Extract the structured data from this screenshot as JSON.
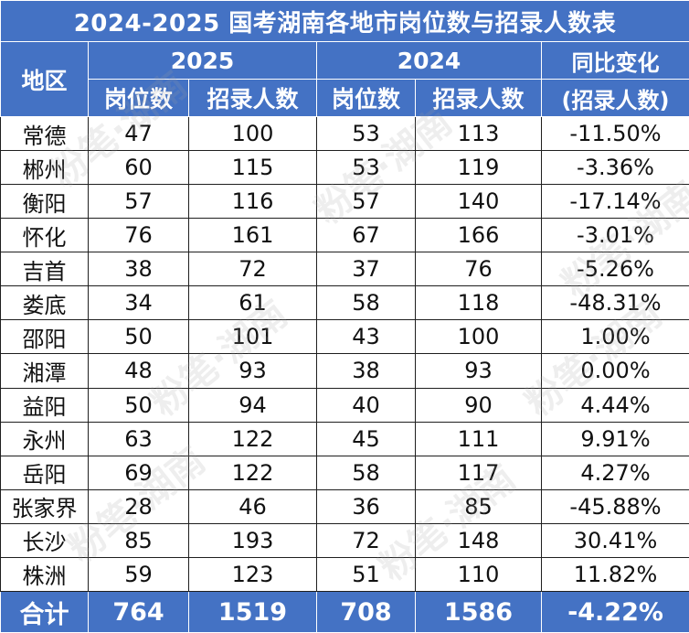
{
  "title": "2024-2025 国考湖南各地市岗位数与招录人数表",
  "header": {
    "region": "地区",
    "year_2025": "2025",
    "year_2024": "2024",
    "yoy_line1": "同比变化",
    "yoy_line2": "(招录人数)",
    "positions": "岗位数",
    "recruits": "招录人数"
  },
  "rows": [
    {
      "region": "常德",
      "p2025": "47",
      "r2025": "100",
      "p2024": "53",
      "r2024": "113",
      "yoy": "-11.50%"
    },
    {
      "region": "郴州",
      "p2025": "60",
      "r2025": "115",
      "p2024": "53",
      "r2024": "119",
      "yoy": "-3.36%"
    },
    {
      "region": "衡阳",
      "p2025": "57",
      "r2025": "116",
      "p2024": "57",
      "r2024": "140",
      "yoy": "-17.14%"
    },
    {
      "region": "怀化",
      "p2025": "76",
      "r2025": "161",
      "p2024": "67",
      "r2024": "166",
      "yoy": "-3.01%"
    },
    {
      "region": "吉首",
      "p2025": "38",
      "r2025": "72",
      "p2024": "37",
      "r2024": "76",
      "yoy": "-5.26%"
    },
    {
      "region": "娄底",
      "p2025": "34",
      "r2025": "61",
      "p2024": "58",
      "r2024": "118",
      "yoy": "-48.31%"
    },
    {
      "region": "邵阳",
      "p2025": "50",
      "r2025": "101",
      "p2024": "43",
      "r2024": "100",
      "yoy": "1.00%"
    },
    {
      "region": "湘潭",
      "p2025": "48",
      "r2025": "93",
      "p2024": "38",
      "r2024": "93",
      "yoy": "0.00%"
    },
    {
      "region": "益阳",
      "p2025": "50",
      "r2025": "94",
      "p2024": "40",
      "r2024": "90",
      "yoy": "4.44%"
    },
    {
      "region": "永州",
      "p2025": "63",
      "r2025": "122",
      "p2024": "45",
      "r2024": "111",
      "yoy": "9.91%"
    },
    {
      "region": "岳阳",
      "p2025": "69",
      "r2025": "122",
      "p2024": "58",
      "r2024": "117",
      "yoy": "4.27%"
    },
    {
      "region": "张家界",
      "p2025": "28",
      "r2025": "46",
      "p2024": "36",
      "r2024": "85",
      "yoy": "-45.88%"
    },
    {
      "region": "长沙",
      "p2025": "85",
      "r2025": "193",
      "p2024": "72",
      "r2024": "148",
      "yoy": "30.41%"
    },
    {
      "region": "株洲",
      "p2025": "59",
      "r2025": "123",
      "p2024": "51",
      "r2024": "110",
      "yoy": "11.82%"
    }
  ],
  "total": {
    "label": "合计",
    "p2025": "764",
    "r2025": "1519",
    "p2024": "708",
    "r2024": "1586",
    "yoy": "-4.22%"
  },
  "watermark": "粉笔·湖南",
  "colors": {
    "header_bg": "#4472c4",
    "header_text": "#ffffff",
    "grid": "#1f1f1f"
  }
}
